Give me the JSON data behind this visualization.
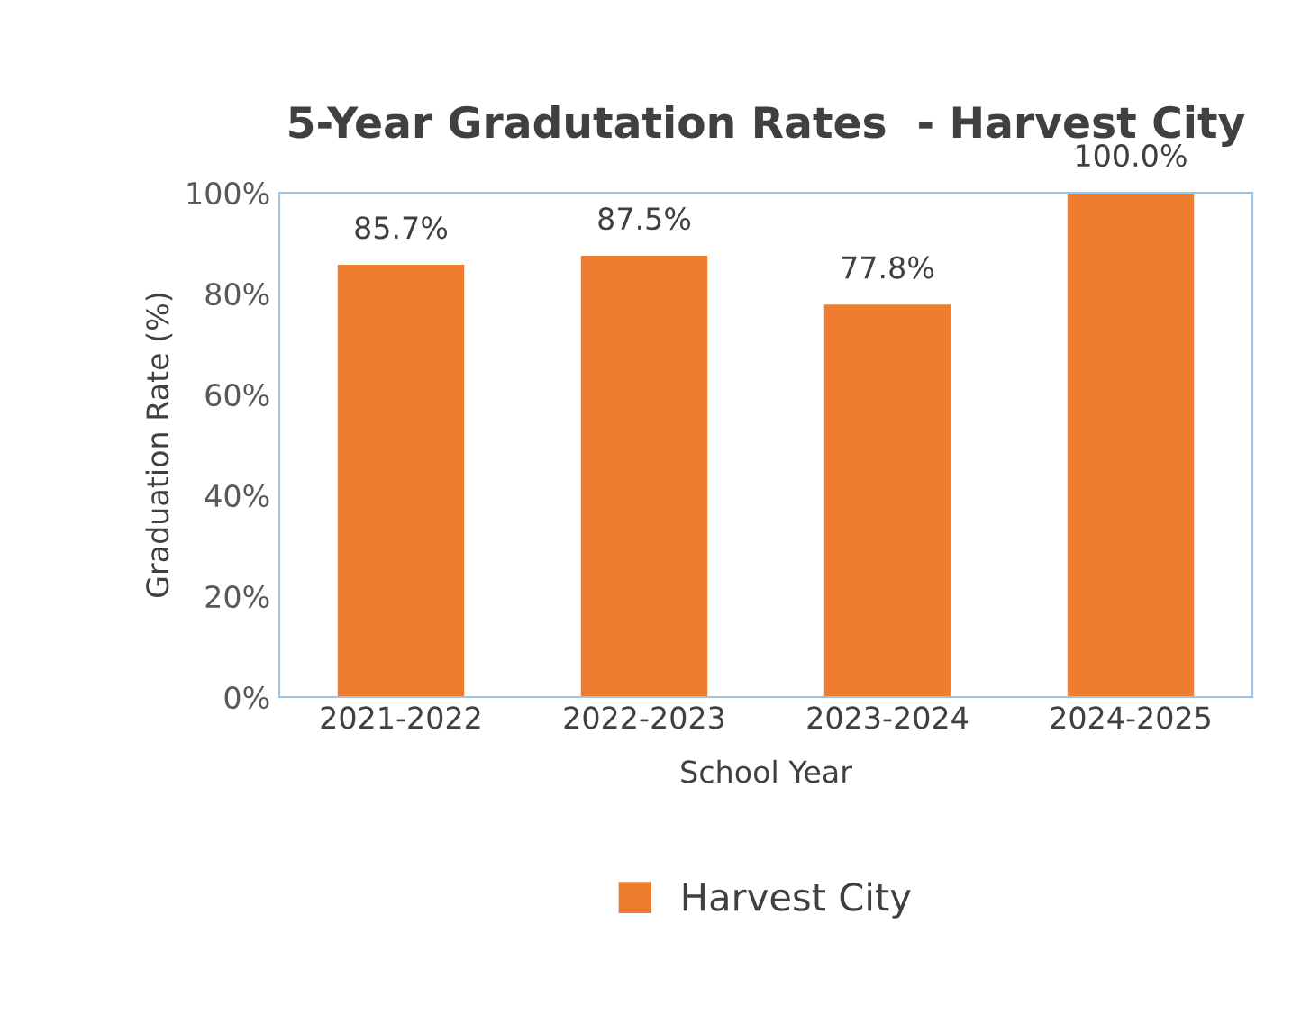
{
  "chart_data": {
    "type": "bar",
    "title": "5-Year Gradutation Rates  - Harvest City",
    "xlabel": "School Year",
    "ylabel": "Graduation Rate (%)",
    "categories": [
      "2021-2022",
      "2022-2023",
      "2023-2024",
      "2024-2025"
    ],
    "series": [
      {
        "name": "Harvest City",
        "color": "#ef7d2f",
        "values": [
          85.7,
          87.5,
          77.8,
          100.0
        ]
      }
    ],
    "value_labels": [
      "85.7%",
      "87.5%",
      "77.8%",
      "100.0%"
    ],
    "ylim": [
      0,
      100
    ],
    "yticks": [
      {
        "value": 0,
        "label": "0%"
      },
      {
        "value": 20,
        "label": "20%"
      },
      {
        "value": 40,
        "label": "40%"
      },
      {
        "value": 60,
        "label": "60%"
      },
      {
        "value": 80,
        "label": "80%"
      },
      {
        "value": 100,
        "label": "100%"
      }
    ],
    "grid": false,
    "legend": "bottom"
  }
}
